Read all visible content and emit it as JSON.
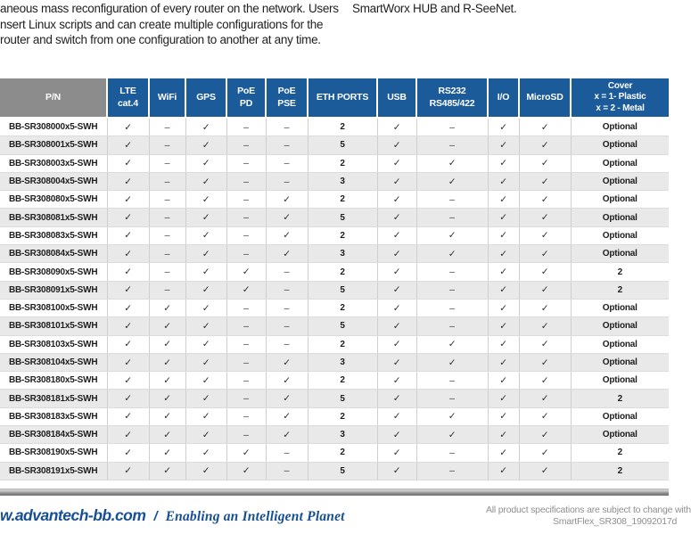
{
  "intro": {
    "left_lines": [
      "aneous mass reconfiguration of every router on the network. Users",
      "nsert Linux scripts and can create multiple configurations for the",
      "router and switch from one configuration to another at any time."
    ],
    "right_line": "SmartWorx HUB and R-SeeNet."
  },
  "table": {
    "headers": [
      "P/N",
      "LTE\ncat.4",
      "WiFi",
      "GPS",
      "PoE\nPD",
      "PoE\nPSE",
      "ETH PORTS",
      "USB",
      "RS232\nRS485/422",
      "I/O",
      "MicroSD",
      "Cover\nx = 1- Plastic\nx = 2 - Metal"
    ],
    "rows": [
      [
        "BB-SR308000x5-SWH",
        "✓",
        "–",
        "✓",
        "–",
        "–",
        "2",
        "✓",
        "–",
        "✓",
        "✓",
        "Optional"
      ],
      [
        "BB-SR308001x5-SWH",
        "✓",
        "–",
        "✓",
        "–",
        "–",
        "5",
        "✓",
        "–",
        "✓",
        "✓",
        "Optional"
      ],
      [
        "BB-SR308003x5-SWH",
        "✓",
        "–",
        "✓",
        "–",
        "–",
        "2",
        "✓",
        "✓",
        "✓",
        "✓",
        "Optional"
      ],
      [
        "BB-SR308004x5-SWH",
        "✓",
        "–",
        "✓",
        "–",
        "–",
        "3",
        "✓",
        "✓",
        "✓",
        "✓",
        "Optional"
      ],
      [
        "BB-SR308080x5-SWH",
        "✓",
        "–",
        "✓",
        "–",
        "✓",
        "2",
        "✓",
        "–",
        "✓",
        "✓",
        "Optional"
      ],
      [
        "BB-SR308081x5-SWH",
        "✓",
        "–",
        "✓",
        "–",
        "✓",
        "5",
        "✓",
        "–",
        "✓",
        "✓",
        "Optional"
      ],
      [
        "BB-SR308083x5-SWH",
        "✓",
        "–",
        "✓",
        "–",
        "✓",
        "2",
        "✓",
        "✓",
        "✓",
        "✓",
        "Optional"
      ],
      [
        "BB-SR308084x5-SWH",
        "✓",
        "–",
        "✓",
        "–",
        "✓",
        "3",
        "✓",
        "✓",
        "✓",
        "✓",
        "Optional"
      ],
      [
        "BB-SR308090x5-SWH",
        "✓",
        "–",
        "✓",
        "✓",
        "–",
        "2",
        "✓",
        "–",
        "✓",
        "✓",
        "2"
      ],
      [
        "BB-SR308091x5-SWH",
        "✓",
        "–",
        "✓",
        "✓",
        "–",
        "5",
        "✓",
        "–",
        "✓",
        "✓",
        "2"
      ],
      [
        "BB-SR308100x5-SWH",
        "✓",
        "✓",
        "✓",
        "–",
        "–",
        "2",
        "✓",
        "–",
        "✓",
        "✓",
        "Optional"
      ],
      [
        "BB-SR308101x5-SWH",
        "✓",
        "✓",
        "✓",
        "–",
        "–",
        "5",
        "✓",
        "–",
        "✓",
        "✓",
        "Optional"
      ],
      [
        "BB-SR308103x5-SWH",
        "✓",
        "✓",
        "✓",
        "–",
        "–",
        "2",
        "✓",
        "✓",
        "✓",
        "✓",
        "Optional"
      ],
      [
        "BB-SR308104x5-SWH",
        "✓",
        "✓",
        "✓",
        "–",
        "✓",
        "3",
        "✓",
        "✓",
        "✓",
        "✓",
        "Optional"
      ],
      [
        "BB-SR308180x5-SWH",
        "✓",
        "✓",
        "✓",
        "–",
        "✓",
        "2",
        "✓",
        "–",
        "✓",
        "✓",
        "Optional"
      ],
      [
        "BB-SR308181x5-SWH",
        "✓",
        "✓",
        "✓",
        "–",
        "✓",
        "5",
        "✓",
        "–",
        "✓",
        "✓",
        "2"
      ],
      [
        "BB-SR308183x5-SWH",
        "✓",
        "✓",
        "✓",
        "–",
        "✓",
        "2",
        "✓",
        "✓",
        "✓",
        "✓",
        "Optional"
      ],
      [
        "BB-SR308184x5-SWH",
        "✓",
        "✓",
        "✓",
        "–",
        "✓",
        "3",
        "✓",
        "✓",
        "✓",
        "✓",
        "Optional"
      ],
      [
        "BB-SR308190x5-SWH",
        "✓",
        "✓",
        "✓",
        "✓",
        "–",
        "2",
        "✓",
        "–",
        "✓",
        "✓",
        "2"
      ],
      [
        "BB-SR308191x5-SWH",
        "✓",
        "✓",
        "✓",
        "✓",
        "–",
        "5",
        "✓",
        "–",
        "✓",
        "✓",
        "2"
      ]
    ]
  },
  "footer": {
    "website": "w.advantech-bb.com",
    "separator": "/",
    "tagline": "Enabling an Intelligent Planet",
    "note_line1": "All product specifications are subject to change with",
    "note_line2": "SmartFlex_SR308_19092017d"
  },
  "colors": {
    "header_blue": "#1b5b99",
    "header_gray": "#8c8c8c",
    "row_alt": "#e9e9e9",
    "footer_blue": "#174f94"
  }
}
